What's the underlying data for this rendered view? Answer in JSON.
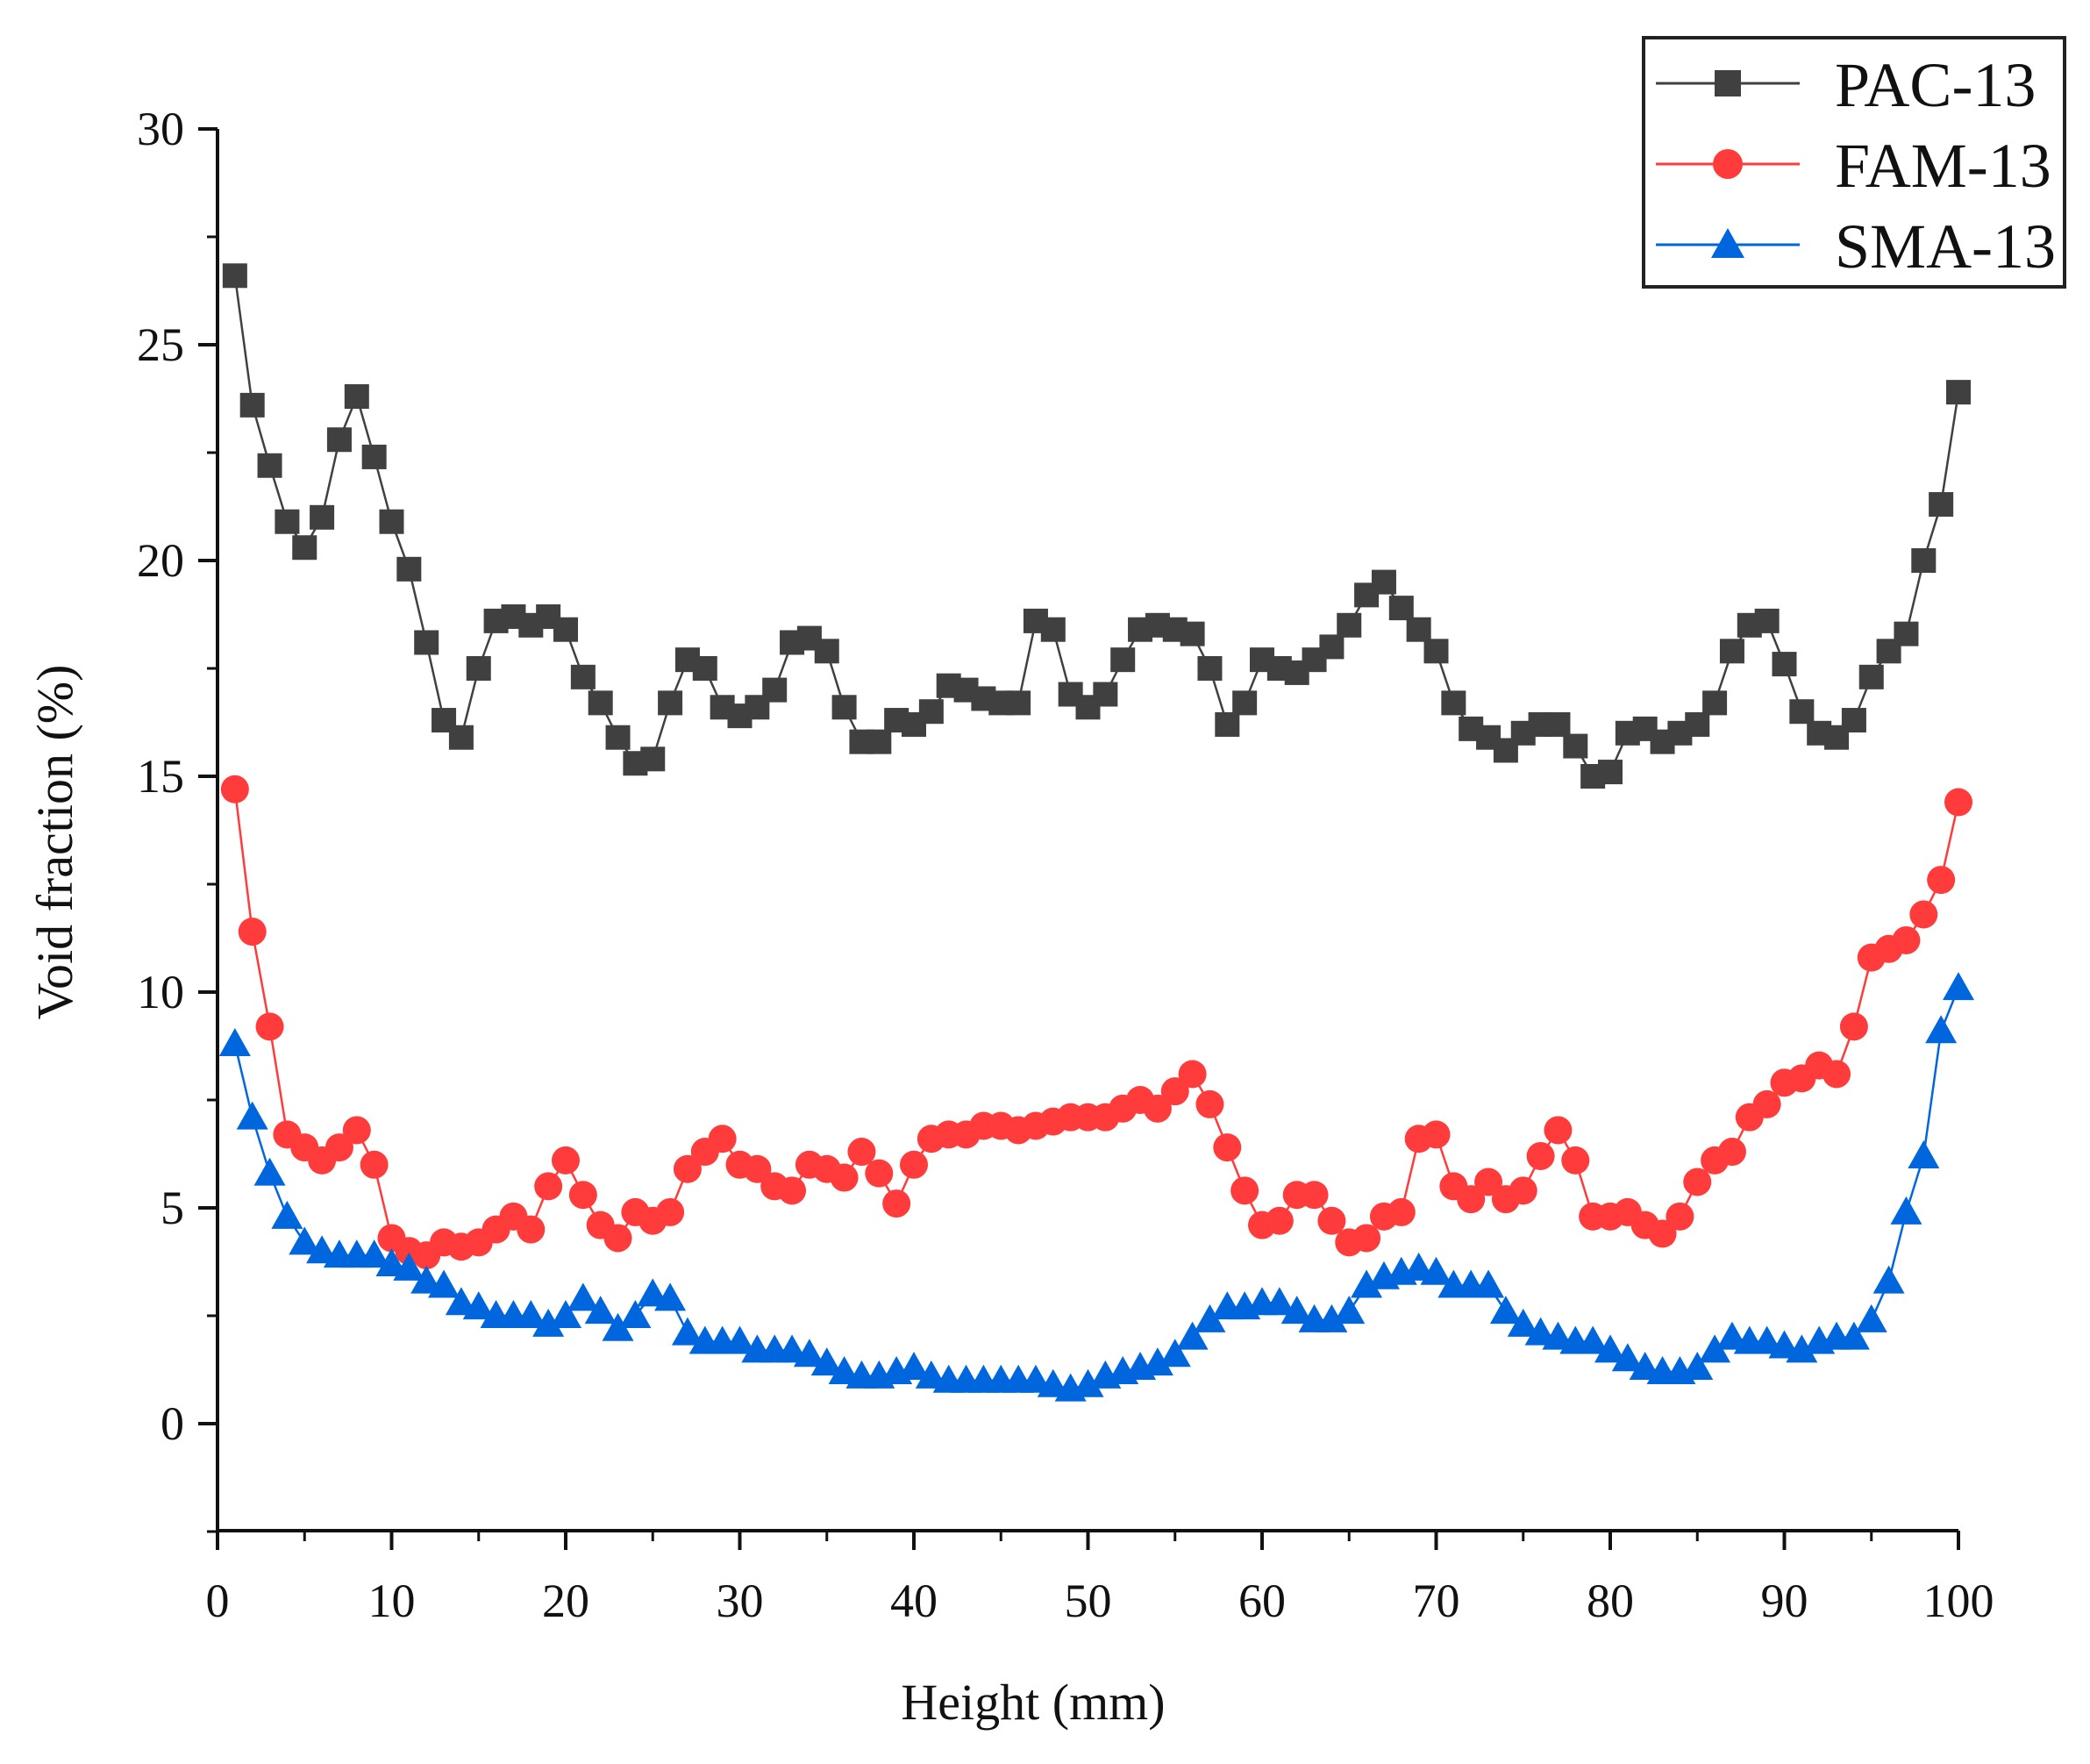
{
  "chart_data": {
    "type": "line",
    "title": "",
    "xlabel": "Height (mm)",
    "ylabel": "Void fraction (%)",
    "xlim": [
      0,
      100
    ],
    "ylim": [
      -2.5,
      30
    ],
    "xticks": [
      0,
      10,
      20,
      30,
      40,
      50,
      60,
      70,
      80,
      90,
      100
    ],
    "yticks": [
      0,
      5,
      10,
      15,
      20,
      25,
      30
    ],
    "grid": false,
    "legend": "top-right",
    "x": [
      1,
      2,
      3,
      4,
      5,
      6,
      7,
      8,
      9,
      10,
      11,
      12,
      13,
      14,
      15,
      16,
      17,
      18,
      19,
      20,
      21,
      22,
      23,
      24,
      25,
      26,
      27,
      28,
      29,
      30,
      31,
      32,
      33,
      34,
      35,
      36,
      37,
      38,
      39,
      40,
      41,
      42,
      43,
      44,
      45,
      46,
      47,
      48,
      49,
      50,
      51,
      52,
      53,
      54,
      55,
      56,
      57,
      58,
      59,
      60,
      61,
      62,
      63,
      64,
      65,
      66,
      67,
      68,
      69,
      70,
      71,
      72,
      73,
      74,
      75,
      76,
      77,
      78,
      79,
      80,
      81,
      82,
      83,
      84,
      85,
      86,
      87,
      88,
      89,
      90,
      91,
      92,
      93,
      94,
      95,
      96,
      97,
      98,
      99,
      100
    ],
    "series": [
      {
        "name": "PAC-13",
        "color": "#404040",
        "marker": "square",
        "values": [
          26.6,
          23.6,
          22.2,
          20.9,
          20.3,
          21.0,
          22.8,
          23.8,
          22.4,
          20.9,
          19.8,
          18.1,
          16.3,
          15.9,
          17.5,
          18.6,
          18.7,
          18.5,
          18.7,
          18.4,
          17.3,
          16.7,
          15.9,
          15.3,
          15.4,
          16.7,
          17.7,
          17.5,
          16.6,
          16.4,
          16.6,
          17.0,
          18.1,
          18.2,
          17.9,
          16.6,
          15.8,
          15.8,
          16.3,
          16.2,
          16.5,
          17.1,
          17.0,
          16.8,
          16.7,
          16.7,
          18.6,
          18.4,
          16.9,
          16.6,
          16.9,
          17.7,
          18.4,
          18.5,
          18.4,
          18.3,
          17.5,
          16.2,
          16.7,
          17.7,
          17.5,
          17.4,
          17.7,
          18.0,
          18.5,
          19.2,
          19.5,
          18.9,
          18.4,
          17.9,
          16.7,
          16.1,
          15.9,
          15.6,
          16.0,
          16.2,
          16.2,
          15.7,
          15.0,
          15.1,
          16.0,
          16.1,
          15.8,
          16.0,
          16.2,
          16.7,
          17.9,
          18.5,
          18.6,
          17.6,
          16.5,
          16.0,
          15.9,
          16.3,
          17.3,
          17.9,
          18.3,
          20.0,
          21.3,
          23.9
        ]
      },
      {
        "name": "FAM-13",
        "color": "#ff3b3b",
        "marker": "circle",
        "values": [
          14.7,
          11.4,
          9.2,
          6.7,
          6.4,
          6.1,
          6.4,
          6.8,
          6.0,
          4.3,
          4.0,
          3.9,
          4.2,
          4.1,
          4.2,
          4.5,
          4.8,
          4.5,
          5.5,
          6.1,
          5.3,
          4.6,
          4.3,
          4.9,
          4.7,
          4.9,
          5.9,
          6.3,
          6.6,
          6.0,
          5.9,
          5.5,
          5.4,
          6.0,
          5.9,
          5.7,
          6.3,
          5.8,
          5.1,
          6.0,
          6.6,
          6.7,
          6.7,
          6.9,
          6.9,
          6.8,
          6.9,
          7.0,
          7.1,
          7.1,
          7.1,
          7.3,
          7.5,
          7.3,
          7.7,
          8.1,
          7.4,
          6.4,
          5.4,
          4.6,
          4.7,
          5.3,
          5.3,
          4.7,
          4.2,
          4.3,
          4.8,
          4.9,
          6.6,
          6.7,
          5.5,
          5.2,
          5.6,
          5.2,
          5.4,
          6.2,
          6.8,
          6.1,
          4.8,
          4.8,
          4.9,
          4.6,
          4.4,
          4.8,
          5.6,
          6.1,
          6.3,
          7.1,
          7.4,
          7.9,
          8.0,
          8.3,
          8.1,
          9.2,
          10.8,
          11.0,
          11.2,
          11.8,
          12.6,
          14.4
        ]
      },
      {
        "name": "SMA-13",
        "color": "#0066dd",
        "marker": "triangle",
        "values": [
          8.8,
          7.1,
          5.8,
          4.8,
          4.2,
          4.0,
          3.9,
          3.9,
          3.9,
          3.7,
          3.6,
          3.3,
          3.2,
          2.8,
          2.7,
          2.5,
          2.5,
          2.5,
          2.3,
          2.5,
          2.9,
          2.6,
          2.2,
          2.5,
          3.0,
          2.9,
          2.1,
          1.9,
          1.9,
          1.9,
          1.7,
          1.7,
          1.7,
          1.6,
          1.4,
          1.2,
          1.1,
          1.1,
          1.2,
          1.3,
          1.1,
          1.0,
          1.0,
          1.0,
          1.0,
          1.0,
          1.0,
          0.9,
          0.8,
          0.9,
          1.1,
          1.2,
          1.3,
          1.4,
          1.6,
          2.0,
          2.4,
          2.7,
          2.7,
          2.8,
          2.8,
          2.6,
          2.4,
          2.4,
          2.6,
          3.2,
          3.4,
          3.5,
          3.6,
          3.5,
          3.2,
          3.2,
          3.2,
          2.6,
          2.3,
          2.1,
          2.0,
          1.9,
          1.9,
          1.7,
          1.5,
          1.3,
          1.2,
          1.2,
          1.3,
          1.7,
          2.0,
          1.9,
          1.9,
          1.8,
          1.7,
          1.9,
          2.0,
          2.0,
          2.4,
          3.3,
          4.9,
          6.2,
          9.1,
          10.1
        ]
      }
    ]
  }
}
